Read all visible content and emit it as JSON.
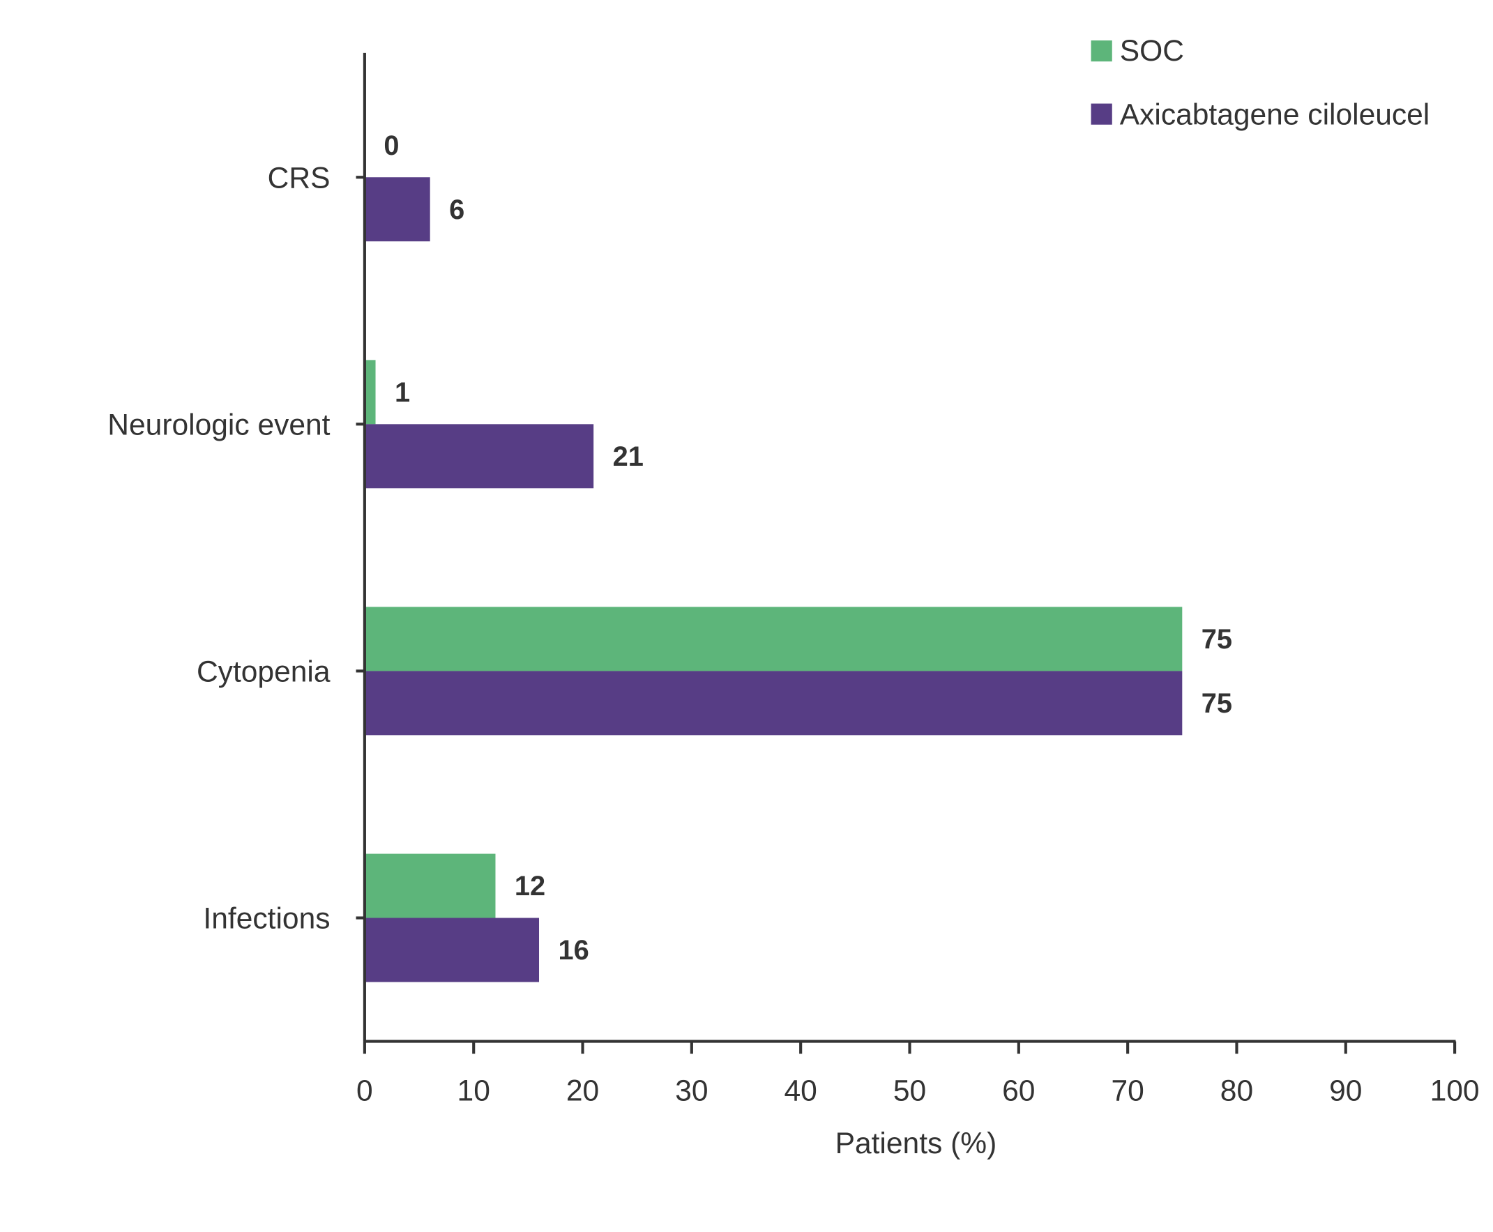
{
  "chart_data": {
    "type": "bar",
    "orientation": "horizontal",
    "categories": [
      "CRS",
      "Neurologic event",
      "Cytopenia",
      "Infections"
    ],
    "series": [
      {
        "name": "SOC",
        "color": "#5db57a",
        "values": [
          0,
          1,
          75,
          12
        ]
      },
      {
        "name": "Axicabtagene ciloleucel",
        "color": "#573d85",
        "values": [
          6,
          21,
          75,
          16
        ]
      }
    ],
    "xlabel": "Patients (%)",
    "ylabel": "",
    "xlim": [
      0,
      100
    ],
    "xticks": [
      "0",
      "10",
      "20",
      "30",
      "40",
      "50",
      "60",
      "70",
      "80",
      "90",
      "100"
    ],
    "grid": false,
    "legend_position": "top-right"
  }
}
